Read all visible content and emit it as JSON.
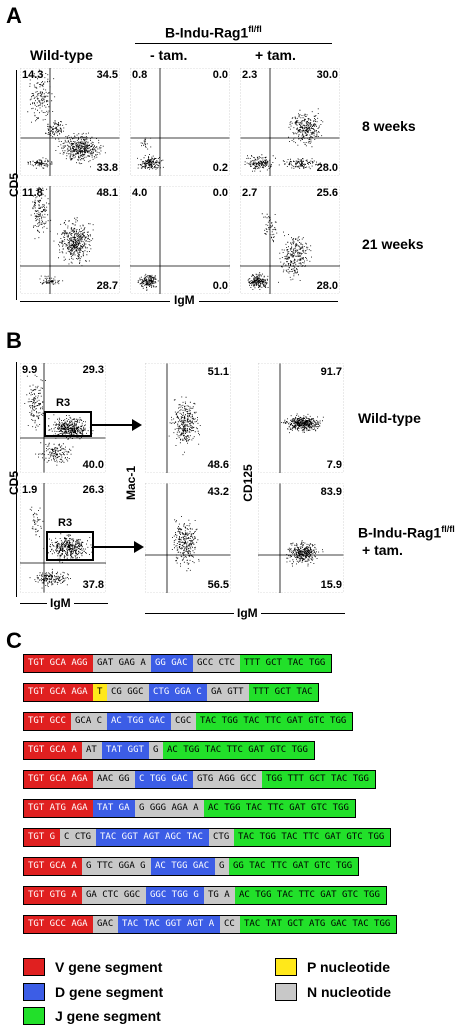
{
  "panelA": {
    "letter": "A",
    "header_group": "B-Indu-Rag1",
    "header_group_sup": "fl/fl",
    "col_headers": [
      "Wild-type",
      "- tam.",
      "+ tam."
    ],
    "row_labels": [
      "8 weeks",
      "21 weeks"
    ],
    "y_axis": "CD5",
    "x_axis": "IgM",
    "plots": [
      {
        "ul": "14.3",
        "ur": "34.5",
        "lr": "33.8"
      },
      {
        "ul": "0.8",
        "ur": "0.0",
        "lr": "0.2"
      },
      {
        "ul": "2.3",
        "ur": "30.0",
        "lr": "28.0"
      },
      {
        "ul": "11.8",
        "ur": "48.1",
        "lr": "28.7"
      },
      {
        "ul": "4.0",
        "ur": "0.0",
        "lr": "0.0"
      },
      {
        "ul": "2.7",
        "ur": "25.6",
        "lr": "28.0"
      }
    ]
  },
  "panelB": {
    "letter": "B",
    "gate": "R3",
    "y_axis1": "CD5",
    "y_axis2": "Mac-1",
    "y_axis3": "CD125",
    "x_axis1": "IgM",
    "x_axis2": "IgM",
    "row_label_1": "Wild-type",
    "row_label_2a": "B-Indu-Rag1",
    "row_label_2a_sup": "fl/fl",
    "row_label_2b": "+ tam.",
    "rows": [
      {
        "cd5": {
          "ul": "9.9",
          "ur": "29.3",
          "lr": "40.0"
        },
        "mac": {
          "ur": "51.1",
          "lr": "48.6"
        },
        "cd125": {
          "ur": "91.7",
          "lr": "7.9"
        }
      },
      {
        "cd5": {
          "ul": "1.9",
          "ur": "26.3",
          "lr": "37.8"
        },
        "mac": {
          "ur": "43.2",
          "lr": "56.5"
        },
        "cd125": {
          "ur": "83.9",
          "lr": "15.9"
        }
      }
    ]
  },
  "panelC": {
    "letter": "C",
    "sequences": [
      [
        [
          "V",
          "TGT GCA AGG"
        ],
        [
          "N",
          "GAT GAG A"
        ],
        [
          "D",
          "GG GAC"
        ],
        [
          "N",
          "GCC CTC"
        ],
        [
          "J",
          "TTT GCT TAC TGG"
        ]
      ],
      [
        [
          "V",
          "TGT GCA AGA"
        ],
        [
          "P",
          "T"
        ],
        [
          "N",
          "CG GGC"
        ],
        [
          "D",
          "CTG GGA C"
        ],
        [
          "N",
          "GA GTT"
        ],
        [
          "J",
          "TTT GCT TAC"
        ]
      ],
      [
        [
          "V",
          "TGT GCC"
        ],
        [
          "N",
          "GCA C"
        ],
        [
          "D",
          "AC TGG GAC"
        ],
        [
          "N",
          "CGC"
        ],
        [
          "J",
          "TAC TGG TAC TTC GAT GTC TGG"
        ]
      ],
      [
        [
          "V",
          "TGT GCA A"
        ],
        [
          "N",
          "AT"
        ],
        [
          "D",
          "TAT GGT"
        ],
        [
          "N",
          "G"
        ],
        [
          "J",
          "AC TGG TAC TTC GAT GTC TGG"
        ]
      ],
      [
        [
          "V",
          "TGT GCA AGA"
        ],
        [
          "N",
          "AAC GG"
        ],
        [
          "D",
          "C TGG GAC"
        ],
        [
          "N",
          "GTG AGG GCC"
        ],
        [
          "J",
          "TGG TTT GCT TAC TGG"
        ]
      ],
      [
        [
          "V",
          "TGT ATG AGA"
        ],
        [
          "D",
          "TAT GA"
        ],
        [
          "N",
          "G GGG AGA A"
        ],
        [
          "J",
          "AC TGG TAC TTC GAT GTC TGG"
        ]
      ],
      [
        [
          "V",
          "TGT G"
        ],
        [
          "N",
          "C CTG"
        ],
        [
          "D",
          "TAC GGT AGT AGC TAC"
        ],
        [
          "N",
          "CTG"
        ],
        [
          "J",
          "TAC TGG TAC TTC GAT GTC TGG"
        ]
      ],
      [
        [
          "V",
          "TGT GCA A"
        ],
        [
          "N",
          "G TTC GGA G"
        ],
        [
          "D",
          "AC TGG GAC"
        ],
        [
          "N",
          "G"
        ],
        [
          "J",
          "GG TAC TTC GAT GTC TGG"
        ]
      ],
      [
        [
          "V",
          "TGT GTG A"
        ],
        [
          "N",
          "GA CTC GGC"
        ],
        [
          "D",
          "GGC TGG G"
        ],
        [
          "N",
          "TG A"
        ],
        [
          "J",
          "AC TGG TAC TTC GAT GTC TGG"
        ]
      ],
      [
        [
          "V",
          "TGT GCC AGA"
        ],
        [
          "N",
          "GAC"
        ],
        [
          "D",
          "TAC TAC GGT AGT A"
        ],
        [
          "N",
          "CC"
        ],
        [
          "J",
          "TAC TAT GCT ATG GAC TAC TGG"
        ]
      ]
    ],
    "legend": {
      "V": "V gene segment",
      "D": "D gene segment",
      "J": "J gene segment",
      "P": "P nucleotide",
      "N": "N nucleotide"
    },
    "colors": {
      "V": "#e02020",
      "D": "#3c5de6",
      "J": "#22e02a",
      "N": "#c8c8c8",
      "P": "#ffe81a"
    }
  }
}
